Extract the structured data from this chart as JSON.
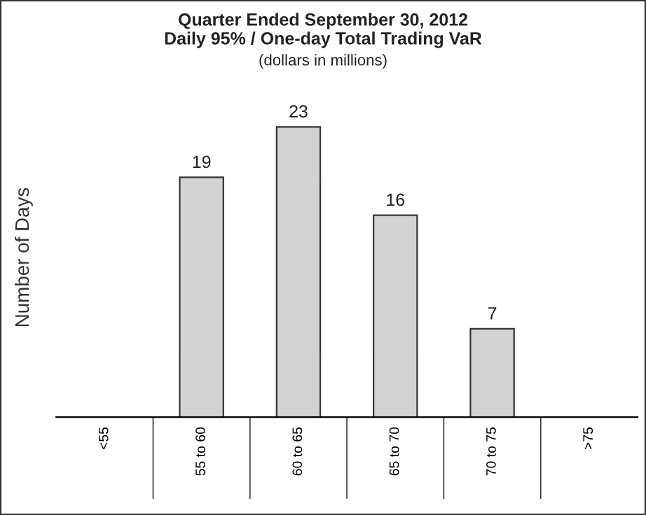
{
  "chart_data": {
    "type": "bar",
    "title": "Quarter Ended September 30, 2012\nDaily 95% / One-day Total Trading VaR",
    "subtitle": "(dollars in millions)",
    "ylabel": "Number of Days",
    "categories": [
      "<55",
      "55 to 60",
      "60 to 65",
      "65 to 70",
      "70 to 75",
      ">75"
    ],
    "values": [
      0,
      19,
      23,
      16,
      7,
      0
    ],
    "value_labels": [
      null,
      "19",
      "23",
      "16",
      "7",
      null
    ],
    "color": "#d3d3d3",
    "grid": false,
    "legend": false
  }
}
